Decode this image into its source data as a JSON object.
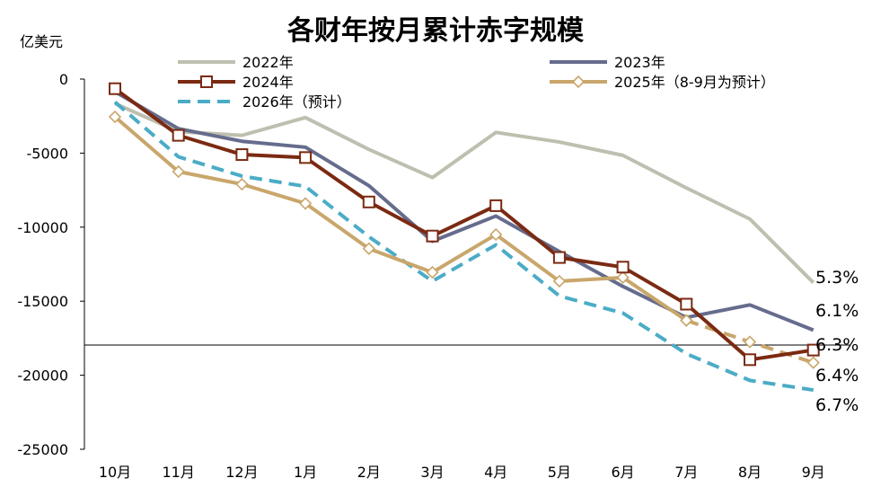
{
  "chart_data": {
    "type": "line",
    "title": "各财年按月累计赤字规模",
    "ylabel": "亿美元",
    "xlabel": "",
    "categories": [
      "10月",
      "11月",
      "12月",
      "1月",
      "2月",
      "3月",
      "4月",
      "5月",
      "6月",
      "7月",
      "8月",
      "9月"
    ],
    "ylim": [
      -25000,
      0
    ],
    "yticks": [
      0,
      -5000,
      -10000,
      -15000,
      -20000,
      -25000
    ],
    "ytick_labels": [
      "0",
      "-5000",
      "-10000",
      "-15000",
      "-20000",
      "-25000"
    ],
    "series": [
      {
        "name": "2022年",
        "color": "#BFBFB0",
        "style": "solid",
        "marker": "none",
        "values": [
          -1650,
          -3550,
          -3800,
          -2600,
          -4750,
          -6650,
          -3600,
          -4250,
          -5150,
          -7350,
          -9450,
          -13750
        ]
      },
      {
        "name": "2023年",
        "color": "#656C8C",
        "style": "solid",
        "marker": "none",
        "values": [
          -850,
          -3350,
          -4200,
          -4600,
          -7200,
          -10950,
          -9250,
          -11650,
          -14000,
          -16100,
          -15250,
          -16950
        ]
      },
      {
        "name": "2024年",
        "color": "#7B2A12",
        "style": "solid",
        "marker": "square",
        "values": [
          -650,
          -3800,
          -5100,
          -5300,
          -8300,
          -10600,
          -8550,
          -12050,
          -12700,
          -15200,
          -18950,
          -18300
        ]
      },
      {
        "name": "2025年（8-9月为预计）",
        "color": "#C9A66B",
        "style": "solid",
        "marker": "diamond",
        "values": [
          -2550,
          -6250,
          -7100,
          -8400,
          -11450,
          -13050,
          -10500,
          -13650,
          -13400,
          -16300,
          null,
          null
        ]
      },
      {
        "name": "2025年（8-9月为预计）-forecast",
        "color": "#C9A66B",
        "style": "dashed",
        "marker": "diamond",
        "legend": false,
        "values": [
          null,
          null,
          null,
          null,
          null,
          null,
          null,
          null,
          null,
          -16300,
          -17750,
          -19150
        ]
      },
      {
        "name": "2026年（预计）",
        "color": "#4BACC6",
        "style": "dashed",
        "marker": "none",
        "values": [
          -1550,
          -5250,
          -6550,
          -7250,
          -10650,
          -13650,
          -11200,
          -14650,
          -15800,
          -18550,
          -20350,
          -21000
        ]
      }
    ],
    "legend": [
      {
        "label": "2022年",
        "series": 0
      },
      {
        "label": "2023年",
        "series": 1
      },
      {
        "label": "2024年",
        "series": 2
      },
      {
        "label": "2025年（8-9月为预计）",
        "series": 3
      },
      {
        "label": "2026年（预计）",
        "series": 5
      }
    ],
    "legend_placement": "top",
    "annotations": [
      "5.3%",
      "6.1%",
      "6.3%",
      "6.4%",
      "6.7%"
    ],
    "grid": false
  }
}
